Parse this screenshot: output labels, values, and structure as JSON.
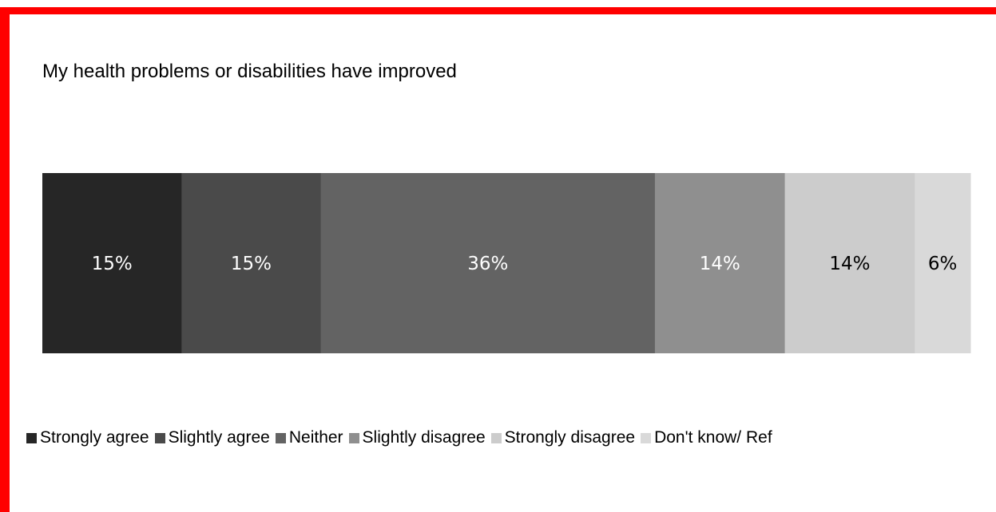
{
  "chart_data": {
    "type": "bar",
    "orientation": "horizontal-stacked-100",
    "title": "My health problems or disabilities have improved",
    "categories": [
      "My health problems or disabilities have improved"
    ],
    "series": [
      {
        "name": "Strongly agree",
        "values": [
          15
        ],
        "label": "15%",
        "color": "#262626",
        "label_color": "#ffffff"
      },
      {
        "name": "Slightly agree",
        "values": [
          15
        ],
        "label": "15%",
        "color": "#4a4a4a",
        "label_color": "#ffffff"
      },
      {
        "name": "Neither",
        "values": [
          36
        ],
        "label": "36%",
        "color": "#636363",
        "label_color": "#ffffff"
      },
      {
        "name": "Slightly disagree",
        "values": [
          14
        ],
        "label": "14%",
        "color": "#8f8f8f",
        "label_color": "#ffffff"
      },
      {
        "name": "Strongly disagree",
        "values": [
          14
        ],
        "label": "14%",
        "color": "#cccccc",
        "label_color": "#000000"
      },
      {
        "name": "Don't know/ Ref",
        "values": [
          6
        ],
        "label": "6%",
        "color": "#d9d9d9",
        "label_color": "#000000"
      }
    ],
    "legend": "bottom",
    "grid": false,
    "xlim": [
      0,
      100
    ]
  },
  "frame": {
    "accent_color": "#ff0000"
  }
}
